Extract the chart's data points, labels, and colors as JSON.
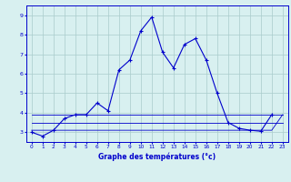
{
  "x": [
    0,
    1,
    2,
    3,
    4,
    5,
    6,
    7,
    8,
    9,
    10,
    11,
    12,
    13,
    14,
    15,
    16,
    17,
    18,
    19,
    20,
    21,
    22,
    23
  ],
  "temp": [
    3.0,
    2.8,
    3.1,
    3.7,
    3.9,
    3.9,
    4.5,
    4.1,
    6.2,
    6.7,
    8.2,
    8.9,
    7.1,
    6.3,
    7.5,
    7.8,
    6.7,
    5.0,
    3.5,
    3.2,
    3.1,
    3.05,
    3.9,
    null
  ],
  "min_line": [
    3.1,
    3.1,
    3.1,
    3.1,
    3.1,
    3.1,
    3.1,
    3.1,
    3.1,
    3.1,
    3.1,
    3.1,
    3.1,
    3.1,
    3.1,
    3.1,
    3.1,
    3.1,
    3.1,
    3.1,
    3.1,
    3.1,
    3.1,
    3.9
  ],
  "max_line": [
    3.9,
    3.9,
    3.9,
    3.9,
    3.9,
    3.9,
    3.9,
    3.9,
    3.9,
    3.9,
    3.9,
    3.9,
    3.9,
    3.9,
    3.9,
    3.9,
    3.9,
    3.9,
    3.9,
    3.9,
    3.9,
    3.9,
    3.9,
    3.9
  ],
  "avg_line": [
    3.5,
    3.5,
    3.5,
    3.5,
    3.5,
    3.5,
    3.5,
    3.5,
    3.5,
    3.5,
    3.5,
    3.5,
    3.5,
    3.5,
    3.5,
    3.5,
    3.5,
    3.5,
    3.5,
    3.5,
    3.5,
    3.5,
    3.5,
    3.5
  ],
  "line_color": "#0000cc",
  "bg_color": "#d8f0f0",
  "grid_color": "#aacccc",
  "xlabel": "Graphe des températures (°c)",
  "ylim": [
    2.5,
    9.5
  ],
  "xlim": [
    -0.5,
    23.5
  ],
  "yticks": [
    3,
    4,
    5,
    6,
    7,
    8,
    9
  ],
  "xticks": [
    0,
    1,
    2,
    3,
    4,
    5,
    6,
    7,
    8,
    9,
    10,
    11,
    12,
    13,
    14,
    15,
    16,
    17,
    18,
    19,
    20,
    21,
    22,
    23
  ]
}
